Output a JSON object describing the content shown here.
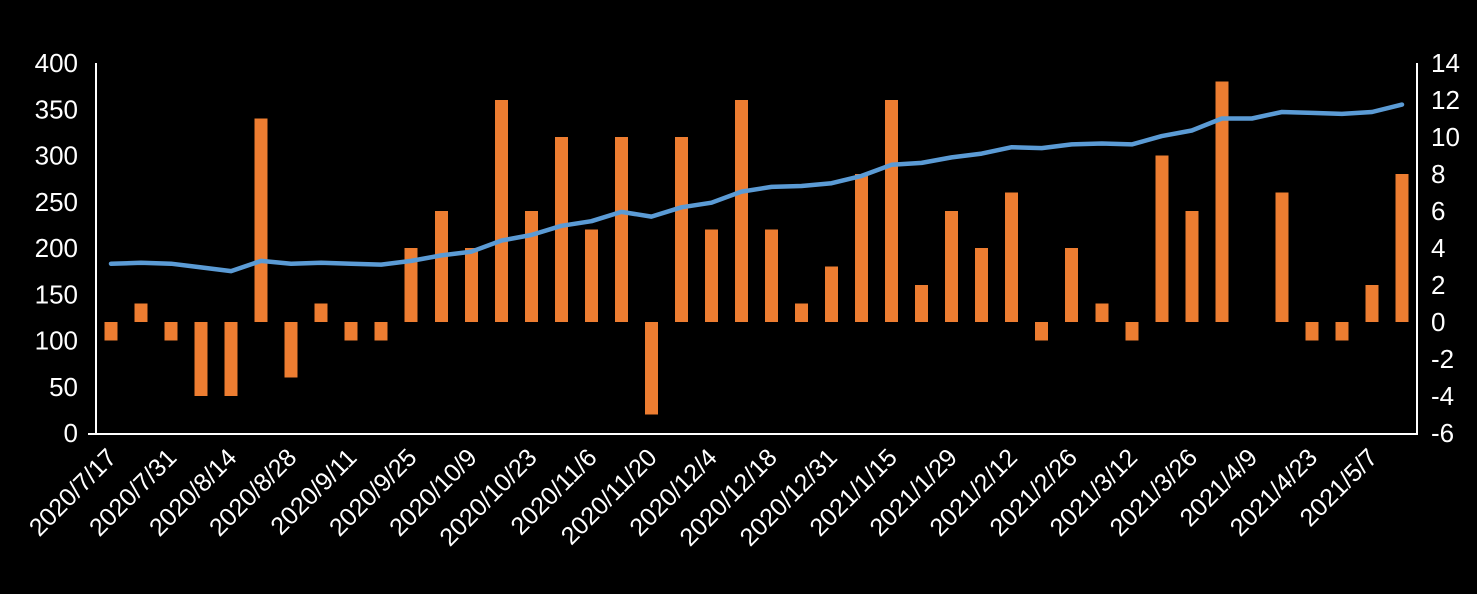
{
  "chart_data": {
    "type": "bar",
    "subtype": "combo-bar-line",
    "title": "",
    "xlabel": "",
    "ylabel_left": "",
    "ylabel_right": "",
    "categories": [
      "2020/7/17",
      "2020/7/24",
      "2020/7/31",
      "2020/8/7",
      "2020/8/14",
      "2020/8/21",
      "2020/8/28",
      "2020/9/4",
      "2020/9/11",
      "2020/9/18",
      "2020/9/25",
      "2020/10/2",
      "2020/10/9",
      "2020/10/16",
      "2020/10/23",
      "2020/10/30",
      "2020/11/6",
      "2020/11/13",
      "2020/11/20",
      "2020/11/27",
      "2020/12/4",
      "2020/12/11",
      "2020/12/18",
      "2020/12/25",
      "2020/12/31",
      "2021/1/8",
      "2021/1/15",
      "2021/1/22",
      "2021/1/29",
      "2021/2/5",
      "2021/2/12",
      "2021/2/19",
      "2021/2/26",
      "2021/3/5",
      "2021/3/12",
      "2021/3/19",
      "2021/3/26",
      "2021/4/2",
      "2021/4/9",
      "2021/4/16",
      "2021/4/23",
      "2021/4/30",
      "2021/5/7",
      "2021/5/14"
    ],
    "x_tick_labels": [
      "2020/7/17",
      "2020/7/31",
      "2020/8/14",
      "2020/8/28",
      "2020/9/11",
      "2020/9/25",
      "2020/10/9",
      "2020/10/23",
      "2020/11/6",
      "2020/11/20",
      "2020/12/4",
      "2020/12/18",
      "2020/12/31",
      "2021/1/15",
      "2021/1/29",
      "2021/2/12",
      "2021/2/26",
      "2021/3/12",
      "2021/3/26",
      "2021/4/9",
      "2021/4/23",
      "2021/5/7"
    ],
    "x_tick_step": 2,
    "series": [
      {
        "name": "weekly-change",
        "render": "bar",
        "axis": "right",
        "color": "#ED7D31",
        "values": [
          -1,
          1,
          -1,
          -4,
          -4,
          11,
          -3,
          1,
          -1,
          -1,
          4,
          6,
          4,
          12,
          6,
          10,
          5,
          10,
          -5,
          10,
          5,
          12,
          5,
          1,
          3,
          8,
          12,
          2,
          6,
          4,
          7,
          -1,
          4,
          1,
          -1,
          9,
          6,
          13,
          0,
          7,
          -1,
          -1,
          2,
          8
        ]
      },
      {
        "name": "cumulative-total",
        "render": "line",
        "axis": "left",
        "color": "#5B9BD5",
        "values": [
          183,
          184,
          183,
          179,
          175,
          186,
          183,
          184,
          183,
          182,
          186,
          192,
          196,
          208,
          214,
          224,
          229,
          239,
          234,
          244,
          249,
          261,
          266,
          267,
          270,
          278,
          290,
          292,
          298,
          302,
          309,
          308,
          312,
          313,
          312,
          321,
          327,
          340,
          340,
          347,
          346,
          345,
          347,
          355
        ]
      }
    ],
    "left_axis": {
      "min": 0,
      "max": 400,
      "step": 50,
      "tick_labels": [
        "0",
        "50",
        "100",
        "150",
        "200",
        "250",
        "300",
        "350",
        "400"
      ]
    },
    "right_axis": {
      "min": -6,
      "max": 14,
      "step": 2,
      "tick_labels": [
        "-6",
        "-4",
        "-2",
        "0",
        "2",
        "4",
        "6",
        "8",
        "10",
        "12",
        "14"
      ]
    },
    "legend": "none",
    "grid": "off",
    "colors": {
      "background": "#000000",
      "axis_line": "#FFFFFF",
      "tick_text": "#FFFFFF",
      "bar": "#ED7D31",
      "line": "#5B9BD5"
    }
  }
}
